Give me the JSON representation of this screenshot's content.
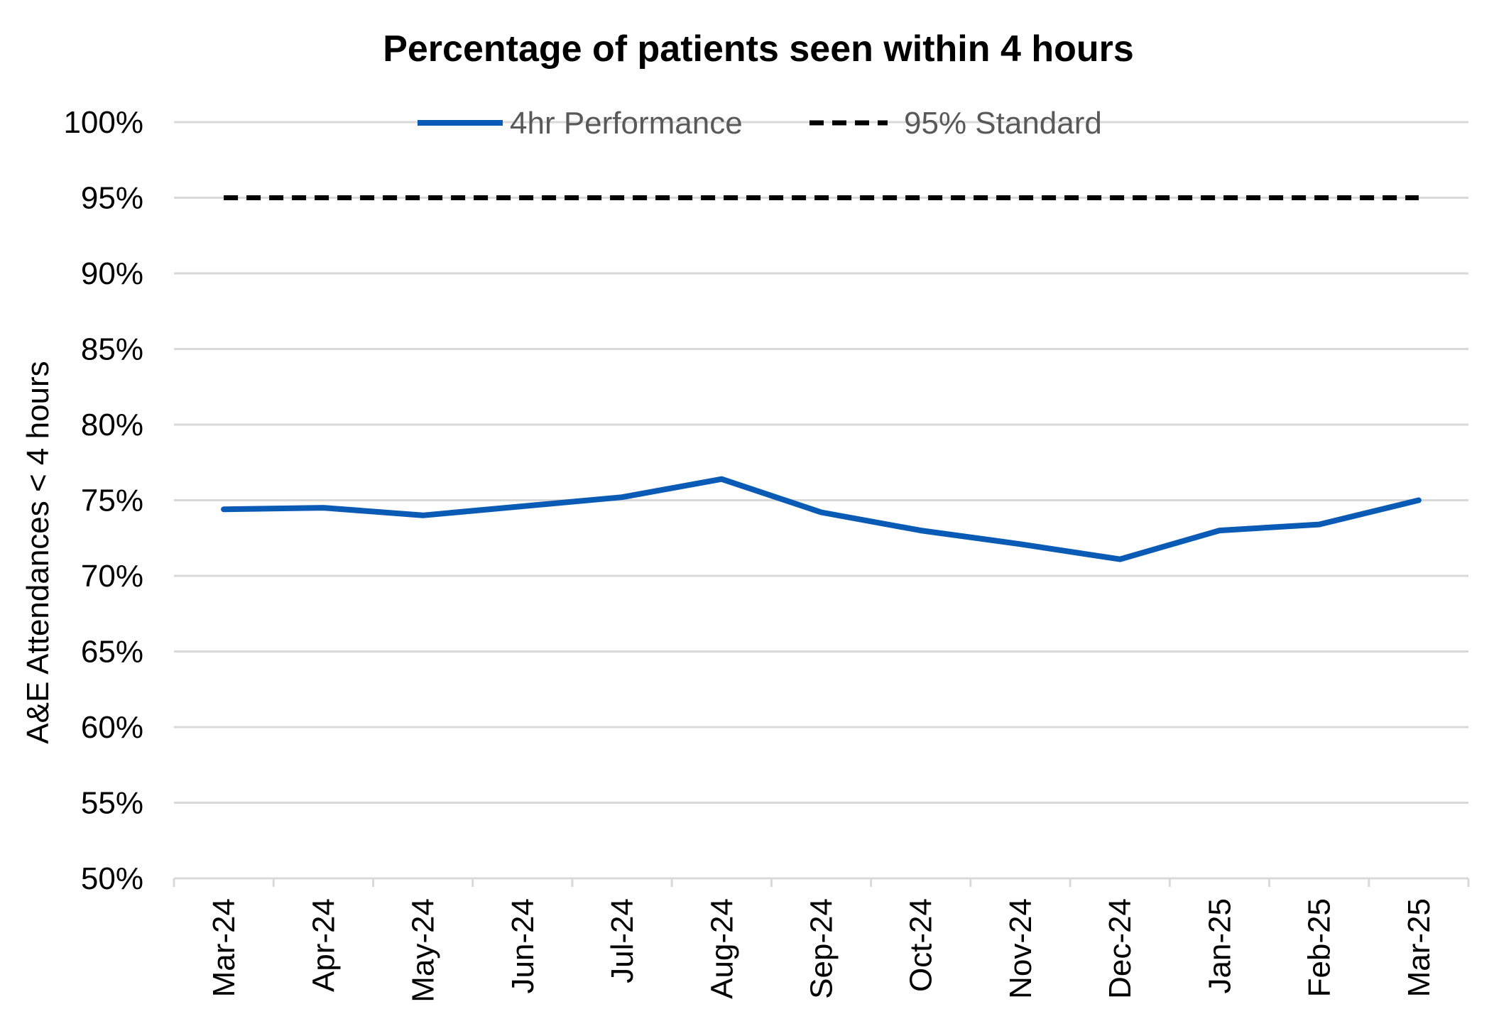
{
  "chart_data": {
    "type": "line",
    "title": "Percentage of patients seen within 4 hours",
    "ylabel": "A&E Attendances < 4 hours",
    "xlabel": "",
    "ylim": [
      50,
      100
    ],
    "y_ticks": [
      "50%",
      "55%",
      "60%",
      "65%",
      "70%",
      "75%",
      "80%",
      "85%",
      "90%",
      "95%",
      "100%"
    ],
    "categories": [
      "Mar-24",
      "Apr-24",
      "May-24",
      "Jun-24",
      "Jul-24",
      "Aug-24",
      "Sep-24",
      "Oct-24",
      "Nov-24",
      "Dec-24",
      "Jan-25",
      "Feb-25",
      "Mar-25"
    ],
    "grid": true,
    "legend_position": "top",
    "series": [
      {
        "name": "4hr Performance",
        "color": "#0a5bb5",
        "style": "solid",
        "values": [
          74.4,
          74.5,
          74.0,
          74.6,
          75.2,
          76.4,
          74.2,
          73.0,
          72.1,
          71.1,
          73.0,
          73.4,
          75.0
        ]
      },
      {
        "name": "95% Standard",
        "color": "#000000",
        "style": "dashed",
        "values": [
          95,
          95,
          95,
          95,
          95,
          95,
          95,
          95,
          95,
          95,
          95,
          95,
          95
        ]
      }
    ]
  }
}
